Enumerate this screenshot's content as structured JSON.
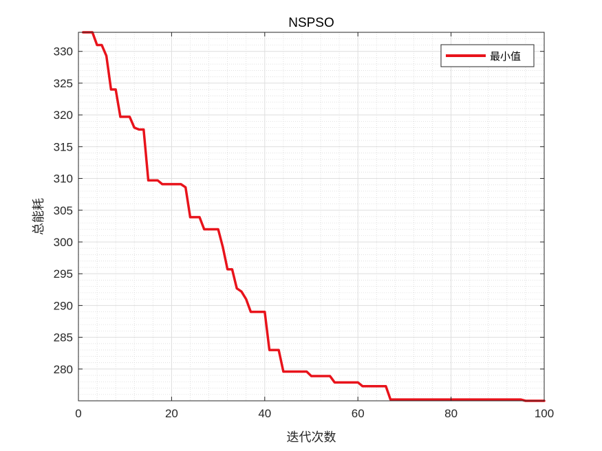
{
  "chart_data": {
    "type": "line",
    "title": "NSPSO",
    "xlabel": "迭代次数",
    "ylabel": "总能耗",
    "xlim": [
      0,
      100
    ],
    "ylim": [
      275,
      333
    ],
    "xticks": [
      0,
      20,
      40,
      60,
      80,
      100
    ],
    "yticks": [
      280,
      285,
      290,
      295,
      300,
      305,
      310,
      315,
      320,
      325,
      330
    ],
    "grid": true,
    "minor_grid": true,
    "legend_position": "top-right",
    "series": [
      {
        "name": "最小值",
        "color": "#e8131b",
        "x": [
          1,
          2,
          3,
          4,
          5,
          6,
          7,
          8,
          9,
          10,
          11,
          12,
          13,
          14,
          15,
          16,
          17,
          18,
          19,
          20,
          21,
          22,
          23,
          24,
          25,
          26,
          27,
          28,
          29,
          30,
          31,
          32,
          33,
          34,
          35,
          36,
          37,
          38,
          39,
          40,
          41,
          42,
          43,
          44,
          45,
          46,
          47,
          48,
          49,
          50,
          51,
          52,
          53,
          54,
          55,
          56,
          57,
          58,
          59,
          60,
          61,
          62,
          63,
          64,
          65,
          66,
          67,
          68,
          69,
          70,
          71,
          72,
          73,
          74,
          75,
          76,
          77,
          78,
          79,
          80,
          81,
          82,
          83,
          84,
          85,
          86,
          87,
          88,
          89,
          90,
          91,
          92,
          93,
          94,
          95,
          96,
          97,
          98,
          99,
          100
        ],
        "values": [
          333,
          333,
          333,
          331,
          331,
          329.3,
          324,
          324,
          319.7,
          319.7,
          319.7,
          318,
          317.7,
          317.7,
          309.7,
          309.7,
          309.7,
          309.1,
          309.1,
          309.1,
          309.1,
          309.1,
          308.6,
          303.9,
          303.9,
          303.9,
          302,
          302,
          302,
          302,
          299.2,
          295.7,
          295.7,
          292.7,
          292.2,
          291,
          289,
          289,
          289,
          289,
          283,
          283,
          283,
          279.6,
          279.6,
          279.6,
          279.6,
          279.6,
          279.6,
          278.9,
          278.9,
          278.9,
          278.9,
          278.9,
          277.9,
          277.9,
          277.9,
          277.9,
          277.9,
          277.9,
          277.3,
          277.3,
          277.3,
          277.3,
          277.3,
          277.3,
          275.2,
          275.2,
          275.2,
          275.2,
          275.2,
          275.2,
          275.2,
          275.2,
          275.2,
          275.2,
          275.2,
          275.2,
          275.2,
          275.2,
          275.2,
          275.2,
          275.2,
          275.2,
          275.2,
          275.2,
          275.2,
          275.2,
          275.2,
          275.2,
          275.2,
          275.2,
          275.2,
          275.2,
          275.2,
          275,
          275,
          275,
          275,
          275
        ]
      }
    ]
  }
}
